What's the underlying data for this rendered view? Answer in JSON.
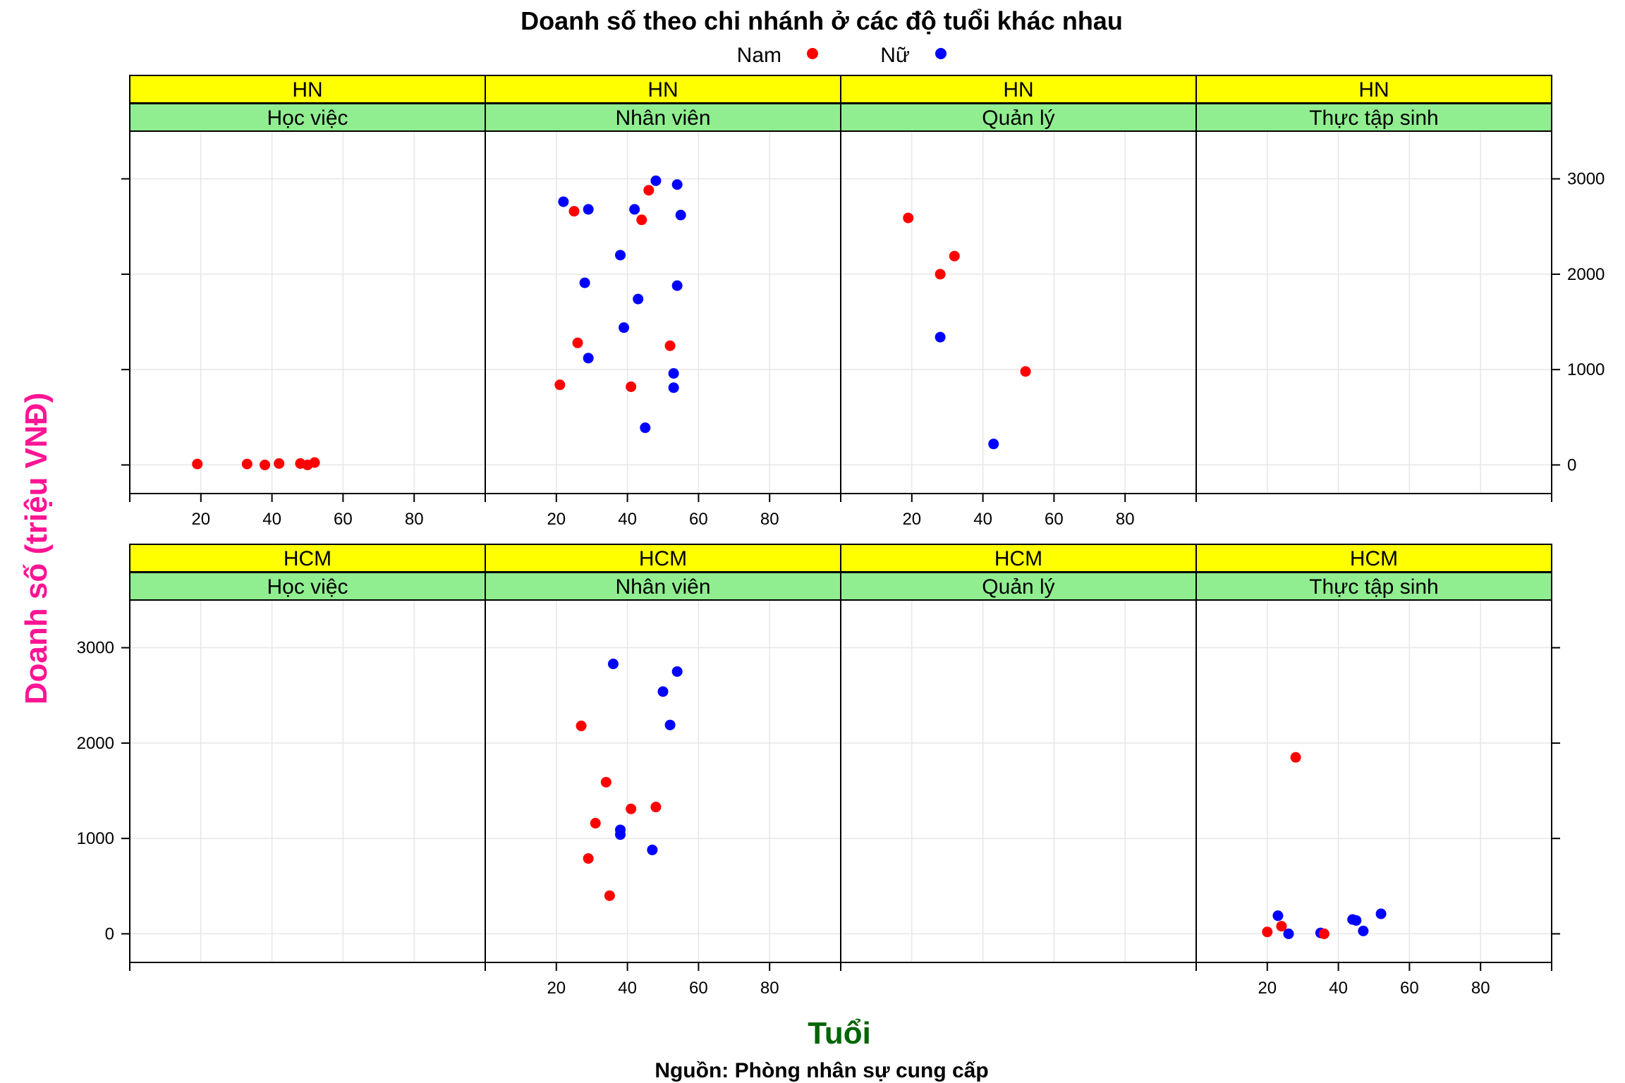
{
  "colors": {
    "strip_branch": "#ffff00",
    "strip_role": "#90ee90",
    "grid": "#e6e6e6",
    "xlabel": "#006400",
    "ylabel": "#ff1493"
  },
  "chart_data": {
    "type": "scatter",
    "title": "Doanh số theo chi nhánh ở các độ tuổi khác nhau",
    "xlabel": "Tuổi",
    "ylabel": "Doanh số (triệu VNĐ)",
    "caption": "Nguồn: Phòng nhân sự cung cấp",
    "xlim": [
      0,
      100
    ],
    "ylim": [
      -300,
      3500
    ],
    "x_ticks": [
      20,
      40,
      60,
      80
    ],
    "y_ticks": [
      0,
      1000,
      2000,
      3000
    ],
    "grid": true,
    "legend": {
      "position": "top",
      "entries": [
        {
          "label": "Nam",
          "color": "#ff0000"
        },
        {
          "label": "Nữ",
          "color": "#0000ff"
        }
      ]
    },
    "panels": [
      {
        "branch": "HN",
        "role": "Học việc",
        "points": [
          {
            "x": 19,
            "y": 10,
            "g": "Nam"
          },
          {
            "x": 33,
            "y": 10,
            "g": "Nam"
          },
          {
            "x": 38,
            "y": 0,
            "g": "Nam"
          },
          {
            "x": 42,
            "y": 15,
            "g": "Nam"
          },
          {
            "x": 48,
            "y": 15,
            "g": "Nam"
          },
          {
            "x": 50,
            "y": 0,
            "g": "Nam"
          },
          {
            "x": 52,
            "y": 25,
            "g": "Nam"
          }
        ]
      },
      {
        "branch": "HN",
        "role": "Nhân viên",
        "points": [
          {
            "x": 22,
            "y": 2760,
            "g": "Nữ"
          },
          {
            "x": 25,
            "y": 2660,
            "g": "Nam"
          },
          {
            "x": 29,
            "y": 2680,
            "g": "Nữ"
          },
          {
            "x": 42,
            "y": 2680,
            "g": "Nữ"
          },
          {
            "x": 46,
            "y": 2880,
            "g": "Nam"
          },
          {
            "x": 48,
            "y": 2980,
            "g": "Nữ"
          },
          {
            "x": 44,
            "y": 2570,
            "g": "Nam"
          },
          {
            "x": 54,
            "y": 2940,
            "g": "Nữ"
          },
          {
            "x": 55,
            "y": 2620,
            "g": "Nữ"
          },
          {
            "x": 38,
            "y": 2200,
            "g": "Nữ"
          },
          {
            "x": 28,
            "y": 1910,
            "g": "Nữ"
          },
          {
            "x": 54,
            "y": 1880,
            "g": "Nữ"
          },
          {
            "x": 43,
            "y": 1740,
            "g": "Nữ"
          },
          {
            "x": 39,
            "y": 1440,
            "g": "Nữ"
          },
          {
            "x": 26,
            "y": 1280,
            "g": "Nam"
          },
          {
            "x": 52,
            "y": 1250,
            "g": "Nam"
          },
          {
            "x": 29,
            "y": 1120,
            "g": "Nữ"
          },
          {
            "x": 53,
            "y": 960,
            "g": "Nữ"
          },
          {
            "x": 21,
            "y": 840,
            "g": "Nam"
          },
          {
            "x": 41,
            "y": 820,
            "g": "Nam"
          },
          {
            "x": 53,
            "y": 810,
            "g": "Nữ"
          },
          {
            "x": 45,
            "y": 390,
            "g": "Nữ"
          }
        ]
      },
      {
        "branch": "HN",
        "role": "Quản lý",
        "points": [
          {
            "x": 19,
            "y": 2590,
            "g": "Nam"
          },
          {
            "x": 32,
            "y": 2190,
            "g": "Nam"
          },
          {
            "x": 28,
            "y": 2000,
            "g": "Nam"
          },
          {
            "x": 28,
            "y": 1340,
            "g": "Nữ"
          },
          {
            "x": 52,
            "y": 980,
            "g": "Nam"
          },
          {
            "x": 43,
            "y": 220,
            "g": "Nữ"
          }
        ]
      },
      {
        "branch": "HN",
        "role": "Thực tập sinh",
        "points": []
      },
      {
        "branch": "HCM",
        "role": "Học việc",
        "points": []
      },
      {
        "branch": "HCM",
        "role": "Nhân viên",
        "points": [
          {
            "x": 36,
            "y": 2830,
            "g": "Nữ"
          },
          {
            "x": 54,
            "y": 2750,
            "g": "Nữ"
          },
          {
            "x": 50,
            "y": 2540,
            "g": "Nữ"
          },
          {
            "x": 52,
            "y": 2190,
            "g": "Nữ"
          },
          {
            "x": 27,
            "y": 2180,
            "g": "Nam"
          },
          {
            "x": 34,
            "y": 1590,
            "g": "Nam"
          },
          {
            "x": 41,
            "y": 1310,
            "g": "Nam"
          },
          {
            "x": 48,
            "y": 1330,
            "g": "Nam"
          },
          {
            "x": 31,
            "y": 1160,
            "g": "Nam"
          },
          {
            "x": 38,
            "y": 1090,
            "g": "Nữ"
          },
          {
            "x": 38,
            "y": 1040,
            "g": "Nữ"
          },
          {
            "x": 47,
            "y": 880,
            "g": "Nữ"
          },
          {
            "x": 29,
            "y": 790,
            "g": "Nam"
          },
          {
            "x": 35,
            "y": 400,
            "g": "Nam"
          }
        ]
      },
      {
        "branch": "HCM",
        "role": "Quản lý",
        "points": []
      },
      {
        "branch": "HCM",
        "role": "Thực tập sinh",
        "points": [
          {
            "x": 28,
            "y": 1850,
            "g": "Nam"
          },
          {
            "x": 52,
            "y": 210,
            "g": "Nữ"
          },
          {
            "x": 23,
            "y": 190,
            "g": "Nữ"
          },
          {
            "x": 44,
            "y": 150,
            "g": "Nữ"
          },
          {
            "x": 45,
            "y": 140,
            "g": "Nữ"
          },
          {
            "x": 24,
            "y": 80,
            "g": "Nam"
          },
          {
            "x": 47,
            "y": 30,
            "g": "Nữ"
          },
          {
            "x": 20,
            "y": 20,
            "g": "Nam"
          },
          {
            "x": 26,
            "y": 0,
            "g": "Nữ"
          },
          {
            "x": 35,
            "y": 10,
            "g": "Nữ"
          },
          {
            "x": 36,
            "y": 0,
            "g": "Nam"
          }
        ]
      }
    ]
  }
}
